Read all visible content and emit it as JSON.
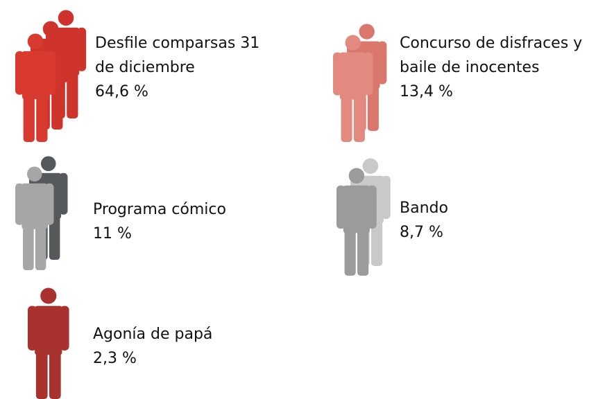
{
  "chart_data": {
    "type": "pictogram",
    "categories": [
      "Desfile comparsas 31 de diciembre",
      "Concurso de disfraces y baile de inocentes",
      "Programa cómico",
      "Bando",
      "Agonía de papá"
    ],
    "values": [
      64.6,
      13.4,
      11,
      8.7,
      2.3
    ],
    "value_labels": [
      "64,6 %",
      "13,4 %",
      "11 %",
      "8,7 %",
      "2,3 %"
    ],
    "colors": [
      "#d93a30",
      "#e38a80",
      "#a6a6a6",
      "#9b9b9b",
      "#a8332e"
    ],
    "shadow_colors": [
      "#cf342c",
      "#d9776d",
      "#55595c",
      "#c9c9c9",
      "#a8332e"
    ]
  }
}
